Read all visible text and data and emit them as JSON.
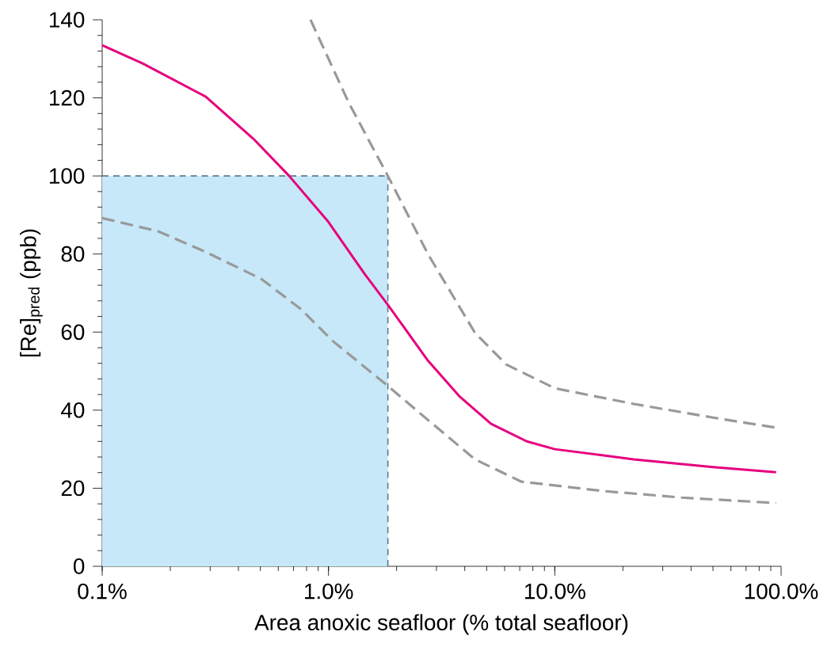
{
  "chart_data": {
    "type": "line",
    "xlabel": "Area anoxic seafloor (% total seafloor)",
    "ylabel": "[Re]$_{pred}$ (ppb)",
    "log": "x",
    "xlim": [
      0.1,
      100
    ],
    "ylim": [
      0,
      140
    ],
    "xticks": [
      {
        "value": 0.1,
        "label": "0.1%"
      },
      {
        "value": 1,
        "label": "1.0%"
      },
      {
        "value": 10,
        "label": "10.0%"
      },
      {
        "value": 100,
        "label": "100.0%"
      }
    ],
    "yticks": [
      0,
      20,
      40,
      60,
      80,
      100,
      120,
      140
    ],
    "grid": false,
    "marker": "none",
    "bands": [
      {
        "axis": "x",
        "from": 0.1,
        "to": 1.83,
        "color": "#c6e8f8"
      }
    ],
    "ref_lines": [
      {
        "axis": "y",
        "value": 100,
        "color": "#5f7a8a",
        "line_style": "dashed"
      },
      {
        "axis": "x",
        "value": 1.83,
        "color": "#5f7a8a",
        "line_style": "dashed"
      }
    ],
    "series": [
      {
        "color": "#e6007e",
        "line_style": "solid",
        "x": [
          0.1,
          0.151,
          0.287,
          0.466,
          0.67,
          1.0,
          1.44,
          1.83,
          2.75,
          3.78,
          5.23,
          7.52,
          10,
          22.3,
          50,
          95
        ],
        "values": [
          133.5,
          128.8,
          120.3,
          109.5,
          100,
          88.2,
          75,
          67,
          52.7,
          43.6,
          36.5,
          32,
          30,
          27.4,
          25.4,
          24.1
        ]
      },
      {
        "color": "#999999",
        "line_style": "dashed",
        "x": [
          0.833,
          1.23,
          1.83,
          2.75,
          4.44,
          6.1,
          10,
          22.3,
          50,
          95
        ],
        "values": [
          140,
          118.7,
          100,
          80,
          59.8,
          51.7,
          45.6,
          41.6,
          38.1,
          35.5
        ]
      },
      {
        "color": "#999999",
        "line_style": "dashed",
        "x": [
          0.1,
          0.177,
          0.287,
          0.505,
          0.755,
          1.04,
          1.83,
          2.75,
          4.44,
          7.1,
          16.2,
          36.5,
          95
        ],
        "values": [
          89.2,
          85.8,
          80.5,
          73.6,
          65.9,
          57.8,
          46.2,
          37.5,
          27.4,
          21.7,
          19.3,
          17.6,
          16.2
        ]
      }
    ]
  }
}
